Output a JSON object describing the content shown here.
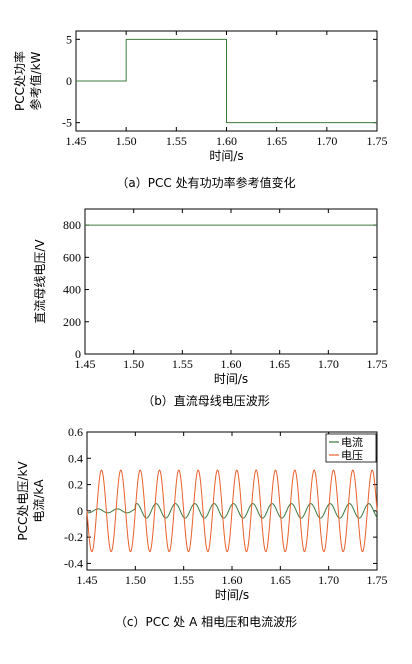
{
  "chart_data": [
    {
      "type": "line",
      "caption": "（a）PCC 处有功功率参考值变化",
      "ylabel_lines": [
        "PCC处功率",
        "参考值/kW"
      ],
      "xlabel": "时间/s",
      "xlim": [
        1.45,
        1.75
      ],
      "ylim": [
        -6,
        6
      ],
      "xticks": [
        "1.45",
        "1.50",
        "1.55",
        "1.60",
        "1.65",
        "1.70",
        "1.75"
      ],
      "yticks": [
        "5",
        "0",
        "-5"
      ],
      "ytick_values": [
        5,
        0,
        -5
      ],
      "series": [
        {
          "color": "#3c7a3c",
          "x": [
            1.45,
            1.5,
            1.5,
            1.6,
            1.6,
            1.75
          ],
          "y": [
            0,
            0,
            5,
            5,
            -5,
            -5
          ]
        }
      ]
    },
    {
      "type": "line",
      "caption": "（b）直流母线电压波形",
      "ylabel_lines": [
        "直流母线电压/V"
      ],
      "xlabel": "时间/s",
      "xlim": [
        1.45,
        1.75
      ],
      "ylim": [
        0,
        900
      ],
      "xticks": [
        "1.45",
        "1.50",
        "1.55",
        "1.60",
        "1.65",
        "1.70",
        "1.75"
      ],
      "yticks": [
        "800",
        "600",
        "400",
        "200",
        "0"
      ],
      "ytick_values": [
        800,
        600,
        400,
        200,
        0
      ],
      "series": [
        {
          "color": "#3c7a3c",
          "x": [
            1.45,
            1.75
          ],
          "y": [
            800,
            800
          ]
        }
      ]
    },
    {
      "type": "line",
      "caption": "（c）PCC 处 A 相电压和电流波形",
      "ylabel_lines": [
        "PCC处电压/kV",
        "电流/kA"
      ],
      "xlabel": "时间/s",
      "xlim": [
        1.45,
        1.75
      ],
      "ylim": [
        -0.45,
        0.6
      ],
      "xticks": [
        "1.45",
        "1.50",
        "1.55",
        "1.60",
        "1.65",
        "1.70",
        "1.75"
      ],
      "yticks": [
        "0.6",
        "0.4",
        "0.2",
        "0",
        "-0.2",
        "-0.4"
      ],
      "ytick_values": [
        0.6,
        0.4,
        0.2,
        0,
        -0.2,
        -0.4
      ],
      "legend": {
        "position": "top-right"
      },
      "series": [
        {
          "name": "电流",
          "color": "#3c7a3c",
          "waveform": {
            "frequency_hz": 50,
            "segments": [
              {
                "from": 1.45,
                "to": 1.5,
                "amplitude": 0.015
              },
              {
                "from": 1.5,
                "to": 1.6,
                "amplitude": 0.055
              },
              {
                "from": 1.6,
                "to": 1.75,
                "amplitude": 0.055
              }
            ]
          }
        },
        {
          "name": "电压",
          "color": "#e8602c",
          "waveform": {
            "frequency_hz": 50,
            "segments": [
              {
                "from": 1.45,
                "to": 1.75,
                "amplitude": 0.31
              }
            ]
          }
        }
      ]
    }
  ]
}
